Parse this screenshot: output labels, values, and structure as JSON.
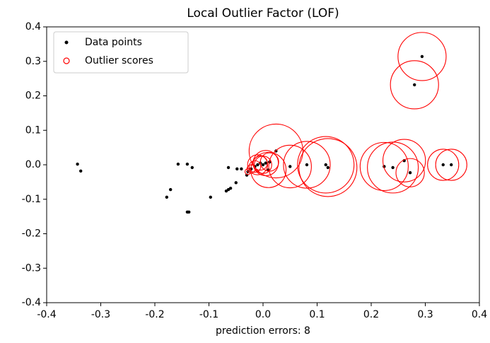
{
  "chart_data": {
    "type": "scatter",
    "title": "Local Outlier Factor (LOF)",
    "x_label": "prediction errors: 8",
    "xlim": [
      -0.4,
      0.4
    ],
    "ylim": [
      -0.4,
      0.4
    ],
    "xticks": [
      -0.4,
      -0.3,
      -0.2,
      -0.1,
      {
        "value": 0,
        "label": "0.0"
      },
      0.1,
      0.2,
      0.3,
      0.4
    ],
    "yticks": [
      -0.4,
      -0.3,
      -0.2,
      -0.1,
      {
        "value": 0,
        "label": "0.0"
      },
      0.1,
      0.2,
      0.3,
      0.4
    ],
    "legend": "upper left",
    "series": [
      {
        "name": "Data points",
        "color": "#000000",
        "x": [
          -0.343,
          -0.337,
          -0.178,
          -0.171,
          -0.157,
          -0.14,
          -0.131,
          -0.14,
          -0.137,
          -0.097,
          -0.068,
          -0.064,
          -0.06,
          -0.064,
          -0.05,
          -0.048,
          -0.04,
          -0.03,
          -0.028,
          -0.022,
          -0.015,
          -0.01,
          -0.005,
          0,
          0.005,
          0.01,
          0.012,
          0.024,
          0.05,
          0.081,
          0.116,
          0.12,
          0.224,
          0.24,
          0.261,
          0.272,
          0.333,
          0.348,
          0.28,
          0.294
        ],
        "values": [
          0.002,
          -0.018,
          -0.094,
          -0.072,
          0.002,
          0.002,
          -0.008,
          -0.137,
          -0.137,
          -0.094,
          -0.076,
          -0.072,
          -0.068,
          -0.008,
          -0.052,
          -0.012,
          -0.012,
          -0.03,
          -0.02,
          -0.012,
          -0.005,
          0,
          0.005,
          0,
          0.005,
          -0.015,
          0.008,
          0.04,
          -0.005,
          0,
          0,
          -0.008,
          -0.005,
          -0.008,
          0.012,
          -0.023,
          0,
          0,
          0.232,
          0.314
        ]
      },
      {
        "name": "Outlier scores",
        "color": "#ff0000",
        "sizes": [
          0,
          0,
          0,
          0,
          0,
          0,
          0,
          0,
          0,
          0,
          0,
          0,
          0,
          0,
          0,
          0,
          0,
          0,
          0.01,
          0.02,
          0.04,
          0.12,
          0.06,
          0.09,
          0.19,
          0.37,
          0.1,
          0.86,
          0.54,
          0.65,
          0.95,
          1.0,
          0.69,
          0.77,
          0.54,
          0.24,
          0.29,
          0.29,
          0.69,
          0.69
        ]
      }
    ]
  }
}
